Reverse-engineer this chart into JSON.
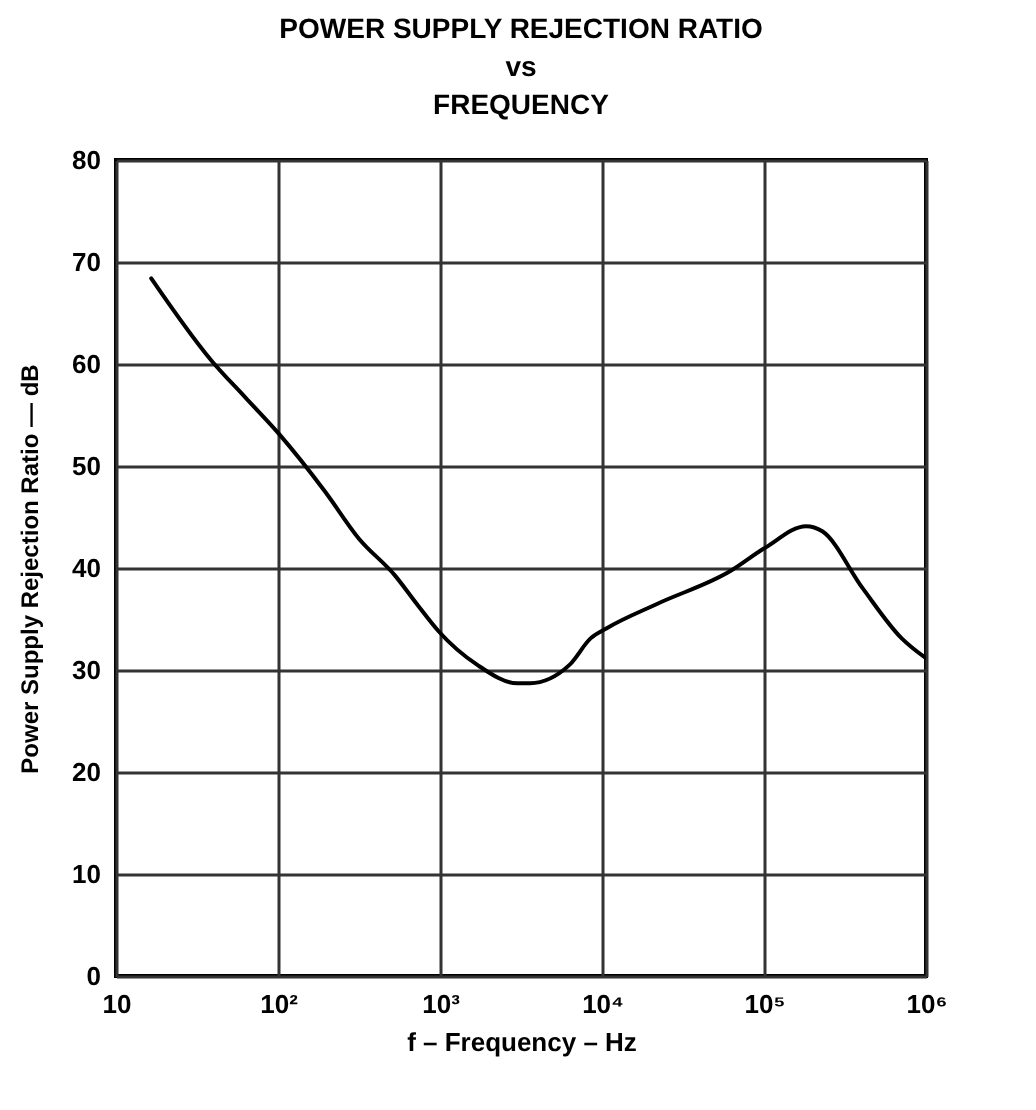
{
  "chart_data": {
    "type": "line",
    "title": "POWER SUPPLY REJECTION RATIO\nvs\nFREQUENCY",
    "xlabel": "f – Frequency – Hz",
    "ylabel": "Power Supply Rejection Ratio — dB",
    "log": "x",
    "grid": true,
    "xlim": [
      10,
      1000000
    ],
    "xticks": [
      10,
      {
        "value": 100,
        "label": "10²"
      },
      {
        "value": 1000,
        "label": "10³"
      },
      {
        "value": 10000,
        "label": "10⁴"
      },
      {
        "value": 100000,
        "label": "10⁵"
      },
      {
        "value": 1000000,
        "label": "10⁶"
      }
    ],
    "ylim": [
      0,
      80
    ],
    "yticks": [
      0,
      10,
      20,
      30,
      40,
      50,
      60,
      70,
      80
    ],
    "series": [
      {
        "color": "#000000",
        "x": [
          16.5,
          39,
          63,
          102,
          195,
          315,
          525,
          725,
          980,
          1700,
          3000,
          3600,
          6300,
          8500,
          10700,
          22000,
          62000,
          102000,
          182000,
          229000,
          407000,
          708000,
          990000
        ],
        "values": [
          68.4,
          60.3,
          56.7,
          53.1,
          47.5,
          42.9,
          39.3,
          36.4,
          33.8,
          30.5,
          28.7,
          28.7,
          30.5,
          33.1,
          34.1,
          36.5,
          39.7,
          42.0,
          44.1,
          43.6,
          38.0,
          33.1,
          31.2
        ]
      }
    ]
  }
}
